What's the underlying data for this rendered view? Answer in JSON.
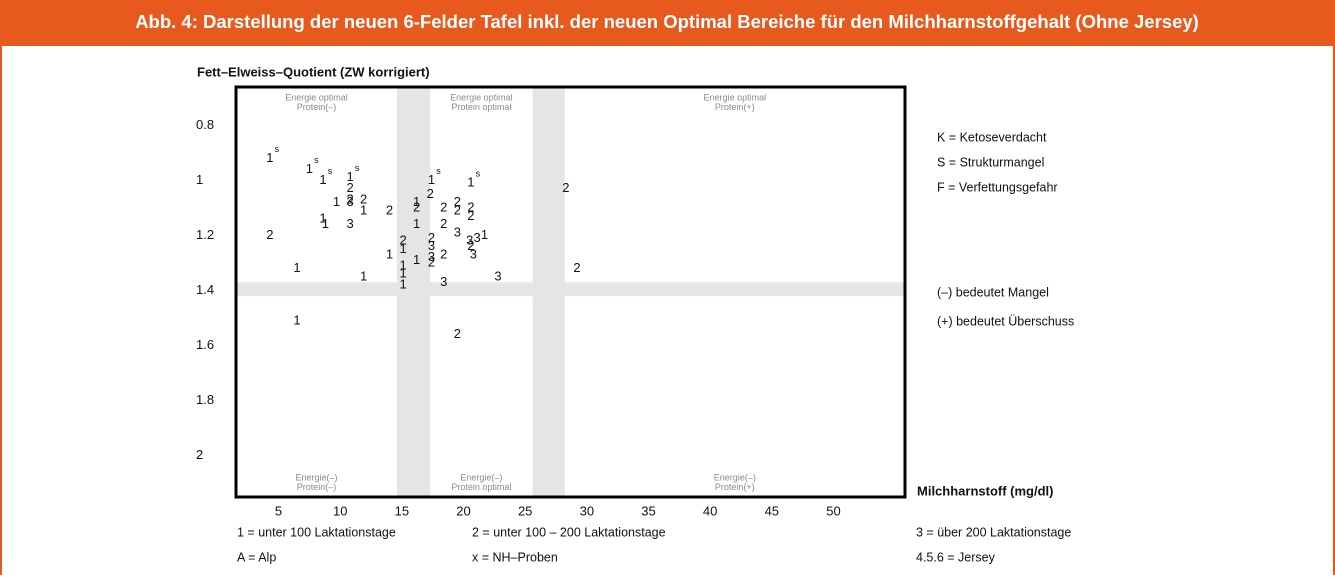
{
  "chart_data": {
    "type": "scatter",
    "title": "Abb. 4: Darstellung der neuen 6-Felder Tafel inkl. der neuen Optimal Bereiche für den Milchharnstoffgehalt (Ohne Jersey)",
    "ylabel": "Fett–Elweiss–Quotient (ZW korrigiert)",
    "xlabel": "Milchharnstoff (mg/dl)",
    "xlim": [
      1.55,
      55.8
    ],
    "xticks": [
      5,
      10,
      15,
      20,
      25,
      30,
      35,
      40,
      45,
      50
    ],
    "ylim": [
      0.66,
      2.15
    ],
    "yticks": [
      0.8,
      1,
      1.2,
      1.4,
      1.6,
      1.8,
      2
    ],
    "y_inverted": true,
    "x_bands": [
      [
        14.6,
        17.3
      ],
      [
        25.6,
        28.2
      ]
    ],
    "y_bands": [
      [
        1.37,
        1.42
      ]
    ],
    "band_color": "#e3e5e7",
    "zones_top": [
      [
        "Energie optimal",
        "Protein(–)"
      ],
      [
        "Energie optimal",
        "Protein optimal"
      ],
      [
        "Energie optimal",
        "Protein(+)"
      ]
    ],
    "zones_bottom": [
      [
        "Energie(–)",
        "Protein(–)"
      ],
      [
        "Energie(–)",
        "Protein optimal"
      ],
      [
        "Energie(–)",
        "Protein(+)"
      ]
    ],
    "legend": [
      "K = Ketoseverdacht",
      "S = Strukturmangel",
      "F = Verfettungsgefahr"
    ],
    "notes": [
      "(–) bedeutet Mangel",
      "(+) bedeutet Überschuss"
    ],
    "footer": [
      [
        "1 = unter 100 Laktationstage",
        "2 = unter 100 – 200 Laktationstage",
        "3 = über 200 Laktationstage"
      ],
      [
        "A = Alp",
        "x = NH–Proben",
        "4.5.6 = Jersey"
      ]
    ],
    "x": [
      4.3,
      7.5,
      8.6,
      10.8,
      10.8,
      10.8,
      9.7,
      10.8,
      11.9,
      11.9,
      8.6,
      8.8,
      10.8,
      14.0,
      16.2,
      16.2,
      16.2,
      17.4,
      17.3,
      18.4,
      19.5,
      19.5,
      20.6,
      20.6,
      20.6,
      18.4,
      19.5,
      21.7,
      20.5,
      21.1,
      20.8,
      20.6,
      17.4,
      15.1,
      15.1,
      14.0,
      17.4,
      17.4,
      18.4,
      16.2,
      17.4,
      15.1,
      15.1,
      15.1,
      11.9,
      6.5,
      4.3,
      18.4,
      22.8,
      29.2,
      28.3,
      6.5,
      19.5
    ],
    "values": [
      0.92,
      0.96,
      1.0,
      0.99,
      1.03,
      1.07,
      1.08,
      1.08,
      1.07,
      1.11,
      1.14,
      1.16,
      1.16,
      1.11,
      1.08,
      1.1,
      1.16,
      1.0,
      1.05,
      1.1,
      1.08,
      1.11,
      1.01,
      1.1,
      1.13,
      1.16,
      1.19,
      1.2,
      1.22,
      1.21,
      1.27,
      1.24,
      1.21,
      1.22,
      1.25,
      1.27,
      1.24,
      1.28,
      1.27,
      1.29,
      1.3,
      1.31,
      1.34,
      1.38,
      1.35,
      1.32,
      1.2,
      1.37,
      1.35,
      1.32,
      1.03,
      1.51,
      1.56
    ],
    "point_labels": [
      "1",
      "1",
      "1",
      "1",
      "2",
      "2",
      "1",
      "3",
      "2",
      "1",
      "1",
      "1",
      "3",
      "2",
      "1",
      "2",
      "1",
      "1",
      "2",
      "2",
      "2",
      "2",
      "1",
      "2",
      "2",
      "2",
      "3",
      "1",
      "3",
      "3",
      "3",
      "2",
      "2",
      "2",
      "1",
      "1",
      "3",
      "3",
      "2",
      "1",
      "2",
      "1",
      "1",
      "1",
      "1",
      "1",
      "2",
      "3",
      "3",
      "2",
      "2",
      "1",
      "2"
    ],
    "superscripts": [
      "s",
      "s",
      "s",
      "s",
      null,
      null,
      null,
      null,
      null,
      null,
      null,
      null,
      null,
      null,
      null,
      null,
      null,
      "s",
      null,
      null,
      null,
      null,
      "s",
      null,
      null,
      null,
      null,
      null,
      null,
      null,
      null,
      null,
      null,
      null,
      null,
      null,
      null,
      null,
      null,
      null,
      null,
      null,
      null,
      null,
      null,
      null,
      null,
      null,
      null,
      null,
      null,
      null,
      null
    ]
  }
}
